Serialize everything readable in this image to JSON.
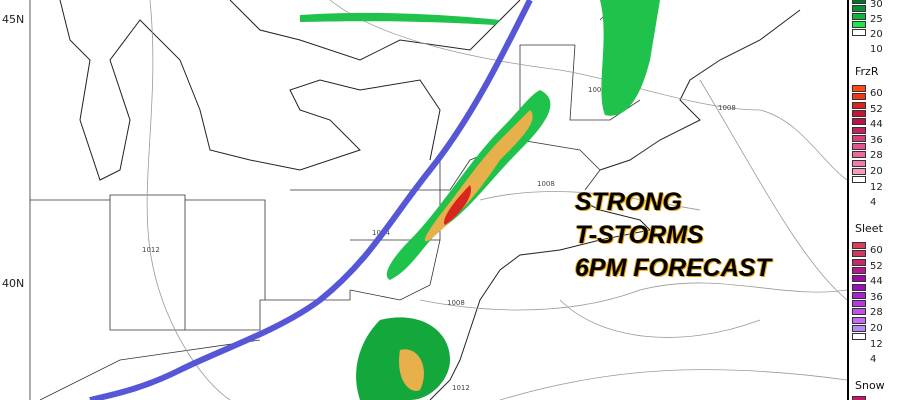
{
  "map": {
    "lat_labels": [
      "45N",
      "40N"
    ],
    "isobar_labels": [
      "1012",
      "1008",
      "1008",
      "1008",
      "1008",
      "1012",
      "1004"
    ],
    "front_color": "#5557d6",
    "overlay_text": [
      "STRONG",
      "T-STORMS",
      "6PM FORECAST"
    ]
  },
  "legend": {
    "rain": {
      "values": [
        "30",
        "25",
        "20",
        "10"
      ],
      "colors": [
        "#0a6d2a",
        "#0c8f35",
        "#12b43f",
        "#1de64c",
        "#ffffff"
      ]
    },
    "frzr": {
      "title": "FrzR",
      "values": [
        "60",
        "52",
        "44",
        "36",
        "28",
        "20",
        "12",
        "4"
      ],
      "colors": [
        "#ff4a12",
        "#ee3a16",
        "#d8261e",
        "#c31636",
        "#b81446",
        "#c42160",
        "#d8407c",
        "#e2558e",
        "#ea6a9c",
        "#f07cab",
        "#f59ebe",
        "#ffffff"
      ]
    },
    "sleet": {
      "title": "Sleet",
      "values": [
        "60",
        "52",
        "44",
        "36",
        "28",
        "20",
        "12",
        "4"
      ],
      "colors": [
        "#d8405a",
        "#cf3660",
        "#c4286e",
        "#b31a8a",
        "#9c0ba8",
        "#9812b8",
        "#a824d0",
        "#b43ae0",
        "#c052ec",
        "#c56cf2",
        "#b88cf6",
        "#ffffff"
      ]
    },
    "snow": {
      "title": "Snow"
    }
  }
}
